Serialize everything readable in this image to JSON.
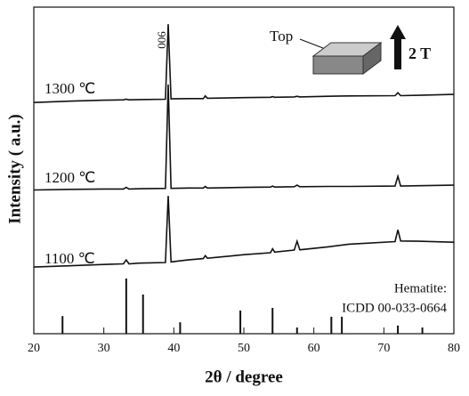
{
  "chart_data": {
    "type": "line",
    "x_label": "2θ / degree",
    "y_label": "Intensity ( a.u.)",
    "xlim": [
      20,
      80
    ],
    "xticks": [
      20,
      30,
      40,
      50,
      60,
      70,
      80
    ],
    "ylim": [
      0,
      100
    ],
    "x": [
      20,
      25,
      30,
      32.8,
      33.2,
      33.6,
      35,
      38.8,
      39.2,
      39.6,
      42,
      44.2,
      44.5,
      44.8,
      50,
      53.8,
      54.1,
      54.4,
      57.2,
      57.6,
      58,
      62,
      65,
      71.6,
      72,
      72.4,
      75,
      80
    ],
    "series": [
      {
        "name": "1300 ℃",
        "color": "#111111",
        "values": [
          70.8,
          71.2,
          71.5,
          71.6,
          71.8,
          71.6,
          71.7,
          71.8,
          94.8,
          71.9,
          72,
          72,
          72.8,
          72.1,
          72.3,
          72.4,
          72.6,
          72.4,
          72.5,
          72.7,
          72.5,
          72.7,
          72.8,
          72.9,
          73.8,
          72.9,
          73,
          73.3
        ]
      },
      {
        "name": "1200 ℃",
        "color": "#111111",
        "values": [
          44,
          44.2,
          44.3,
          44.3,
          44.8,
          44.3,
          44.4,
          44.5,
          76.3,
          44.5,
          44.6,
          44.6,
          45.1,
          44.6,
          44.8,
          44.9,
          45.2,
          44.9,
          45,
          45.5,
          45,
          45.1,
          45.1,
          45.2,
          48.2,
          45.2,
          45.3,
          45.5
        ]
      },
      {
        "name": "1100 ℃",
        "color": "#111111",
        "values": [
          20.4,
          20.8,
          21.2,
          21.4,
          22.6,
          21.4,
          21.6,
          21.8,
          42.2,
          22,
          22.6,
          23,
          23.9,
          23.1,
          24.2,
          24.8,
          26,
          25,
          25.6,
          28.3,
          25.7,
          26.6,
          27.4,
          28.2,
          31.8,
          28.4,
          28.3,
          28
        ]
      }
    ],
    "reference": {
      "label_lines": [
        "Hematite:",
        "ICDD 00-033-0664"
      ],
      "color": "#111111",
      "x": [
        24.1,
        33.2,
        35.6,
        40.9,
        49.5,
        54.1,
        57.6,
        62.5,
        64.0,
        72.0,
        75.5
      ],
      "values": [
        5.4,
        16.9,
        12,
        3.5,
        7.1,
        7.9,
        1.9,
        5.2,
        5.2,
        2.5,
        1.9
      ]
    },
    "annotations": {
      "peak": "006",
      "face": "Top",
      "field": "2 T"
    }
  }
}
